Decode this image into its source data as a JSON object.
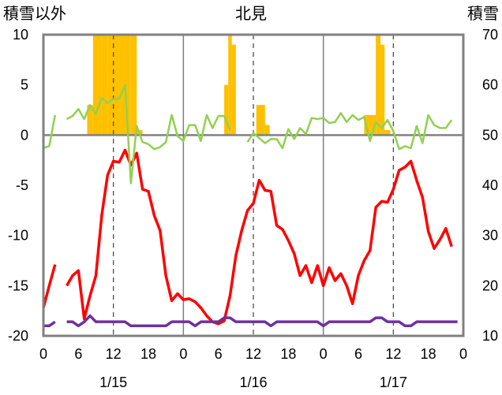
{
  "chart_data": {
    "type": "line",
    "title": "北見",
    "y_left_label": "積雪以外",
    "y_right_label": "積雪",
    "y_left_range": [
      -20,
      10
    ],
    "y_left_ticks": [
      "10",
      "5",
      "0",
      "-5",
      "-10",
      "-15",
      "-20"
    ],
    "y_right_range": [
      10,
      70
    ],
    "y_right_ticks": [
      "70",
      "60",
      "50",
      "40",
      "30",
      "20",
      "10"
    ],
    "x_range_hours": [
      0,
      72
    ],
    "x_tick_labels": [
      "0",
      "6",
      "12",
      "18",
      "0",
      "6",
      "12",
      "18",
      "0",
      "6",
      "12",
      "18",
      "0"
    ],
    "date_labels": [
      "1/15",
      "1/16",
      "1/17"
    ],
    "grid": "vertical lines at each day boundary, dashed lines at noon, horizontal line at 0",
    "colors": {
      "snow_depth": "#FFC000",
      "temperature": "#FF0000",
      "green_series": "#92D050",
      "purple_series": "#7030A0"
    },
    "snow_depth_bars": [
      {
        "x": 7.5,
        "width": 1,
        "value": 56
      },
      {
        "x": 8.5,
        "width": 1.5,
        "value": 70
      },
      {
        "x": 10,
        "width": 1,
        "value": 70
      },
      {
        "x": 11,
        "width": 1,
        "value": 70
      },
      {
        "x": 12,
        "width": 1,
        "value": 70
      },
      {
        "x": 13,
        "width": 1,
        "value": 70
      },
      {
        "x": 14,
        "width": 1,
        "value": 70
      },
      {
        "x": 15,
        "width": 1,
        "value": 70
      },
      {
        "x": 16,
        "width": 1,
        "value": 51
      },
      {
        "x": 31,
        "width": 0.7,
        "value": 60
      },
      {
        "x": 31.7,
        "width": 0.6,
        "value": 70
      },
      {
        "x": 32.3,
        "width": 0.7,
        "value": 68
      },
      {
        "x": 36.5,
        "width": 1.5,
        "value": 56
      },
      {
        "x": 38,
        "width": 0.8,
        "value": 52
      },
      {
        "x": 55,
        "width": 2,
        "value": 54
      },
      {
        "x": 57,
        "width": 0.8,
        "value": 70
      },
      {
        "x": 57.8,
        "width": 0.7,
        "value": 68
      },
      {
        "x": 58.5,
        "width": 1,
        "value": 51
      }
    ],
    "series": [
      {
        "name": "",
        "color": "#FF0000",
        "axis": "left",
        "segments": [
          [
            [
              0,
              -17.2
            ],
            [
              1,
              -15
            ],
            [
              2,
              -12.9
            ]
          ],
          [
            [
              4,
              -15
            ],
            [
              5,
              -14
            ],
            [
              6,
              -13.5
            ],
            [
              7,
              -18.3
            ],
            [
              8,
              -16
            ],
            [
              9,
              -14
            ],
            [
              10,
              -8
            ],
            [
              11,
              -4
            ],
            [
              12,
              -2.6
            ],
            [
              13,
              -2.7
            ],
            [
              14,
              -1.5
            ],
            [
              15,
              -3
            ],
            [
              16,
              -1.8
            ],
            [
              17,
              -5.4
            ],
            [
              18,
              -5.6
            ],
            [
              19,
              -8
            ],
            [
              20,
              -9.5
            ],
            [
              21,
              -14
            ],
            [
              22,
              -16.5
            ],
            [
              23,
              -15.8
            ],
            [
              24,
              -16.4
            ],
            [
              25,
              -16.3
            ],
            [
              26,
              -16.6
            ],
            [
              27,
              -17.2
            ],
            [
              28,
              -18
            ],
            [
              29,
              -18.6
            ],
            [
              30,
              -18.8
            ],
            [
              31,
              -18.5
            ],
            [
              32,
              -16
            ],
            [
              33,
              -12
            ],
            [
              34,
              -9.5
            ],
            [
              35,
              -7.5
            ],
            [
              36,
              -6.8
            ],
            [
              37,
              -4.5
            ],
            [
              38,
              -5.5
            ],
            [
              39,
              -5.6
            ],
            [
              40,
              -9
            ],
            [
              41,
              -9.4
            ],
            [
              42,
              -10.5
            ],
            [
              43,
              -11.8
            ],
            [
              44,
              -14
            ],
            [
              45,
              -13
            ],
            [
              46,
              -14.7
            ],
            [
              47,
              -13
            ],
            [
              48,
              -15
            ],
            [
              49,
              -13.2
            ],
            [
              50,
              -14.5
            ],
            [
              51,
              -13.8
            ],
            [
              52,
              -15
            ],
            [
              53,
              -16.8
            ],
            [
              54,
              -14
            ],
            [
              55,
              -12.5
            ],
            [
              56,
              -11.5
            ],
            [
              57,
              -7.2
            ],
            [
              58,
              -6.6
            ],
            [
              59,
              -6.7
            ],
            [
              60,
              -5.4
            ],
            [
              61,
              -3.5
            ],
            [
              62,
              -3.2
            ],
            [
              63,
              -2.6
            ],
            [
              64,
              -4.5
            ],
            [
              65,
              -6.2
            ],
            [
              66,
              -9.6
            ],
            [
              67,
              -11.3
            ],
            [
              68,
              -10.4
            ],
            [
              69,
              -9.3
            ],
            [
              70,
              -11.1
            ]
          ]
        ]
      },
      {
        "name": "",
        "color": "#92D050",
        "axis": "left",
        "segments": [
          [
            [
              0,
              -1.3
            ],
            [
              1,
              -1.1
            ],
            [
              2,
              2
            ]
          ],
          [
            [
              4,
              1.6
            ],
            [
              5,
              1.9
            ],
            [
              6,
              2.6
            ],
            [
              7,
              1.6
            ],
            [
              8,
              3
            ],
            [
              9,
              2.1
            ],
            [
              10,
              3.7
            ],
            [
              11,
              3.2
            ],
            [
              12,
              3.6
            ],
            [
              13,
              3.6
            ],
            [
              14,
              5
            ],
            [
              15,
              -4.8
            ],
            [
              16,
              0.9
            ],
            [
              17,
              -0.7
            ],
            [
              18,
              -0.9
            ],
            [
              19,
              -1.4
            ],
            [
              20,
              -1.2
            ],
            [
              21,
              -0.7
            ],
            [
              22,
              2
            ],
            [
              23,
              -0.1
            ],
            [
              24,
              -0.6
            ],
            [
              25,
              1
            ],
            [
              26,
              1
            ],
            [
              27,
              -0.6
            ],
            [
              28,
              2
            ],
            [
              29,
              0.7
            ],
            [
              30,
              1.9
            ],
            [
              31,
              1.9
            ],
            [
              32,
              0.5
            ]
          ],
          [
            [
              35,
              -0.7
            ],
            [
              36,
              0.2
            ],
            [
              37,
              -0.3
            ],
            [
              38,
              -0.8
            ],
            [
              39,
              -0.4
            ],
            [
              40,
              -0.4
            ],
            [
              41,
              -1.3
            ],
            [
              42,
              0.6
            ],
            [
              43,
              -0.4
            ],
            [
              44,
              0.7
            ],
            [
              45,
              0.1
            ],
            [
              46,
              1.7
            ],
            [
              47,
              1.6
            ],
            [
              48,
              1.7
            ],
            [
              49,
              1.2
            ],
            [
              50,
              1.3
            ],
            [
              51,
              2.2
            ],
            [
              52,
              1.3
            ],
            [
              53,
              2
            ],
            [
              54,
              1.5
            ],
            [
              55,
              1.8
            ],
            [
              56,
              -0.6
            ],
            [
              57,
              1.3
            ],
            [
              58,
              0.7
            ],
            [
              59,
              1.5
            ],
            [
              60,
              0.4
            ],
            [
              61,
              -1.4
            ],
            [
              62,
              -1.1
            ],
            [
              63,
              -1.3
            ],
            [
              64,
              0.9
            ],
            [
              65,
              -0.8
            ],
            [
              66,
              2
            ],
            [
              67,
              1
            ],
            [
              68,
              0.7
            ],
            [
              69,
              0.7
            ],
            [
              70,
              1.5
            ]
          ]
        ]
      },
      {
        "name": "",
        "color": "#7030A0",
        "axis": "left",
        "segments": [
          [
            [
              0,
              -19
            ],
            [
              1,
              -19
            ],
            [
              2,
              -18.6
            ]
          ],
          [
            [
              4,
              -18.6
            ],
            [
              5,
              -18.6
            ],
            [
              6,
              -19
            ],
            [
              7,
              -18.6
            ],
            [
              8,
              -18
            ],
            [
              9,
              -18.6
            ],
            [
              10,
              -18.6
            ],
            [
              11,
              -18.6
            ],
            [
              12,
              -18.6
            ],
            [
              13,
              -18.6
            ],
            [
              14,
              -18.6
            ],
            [
              15,
              -19
            ],
            [
              16,
              -19
            ],
            [
              17,
              -19
            ],
            [
              18,
              -19
            ],
            [
              19,
              -19
            ],
            [
              20,
              -19
            ],
            [
              21,
              -19
            ],
            [
              22,
              -18.6
            ],
            [
              23,
              -18.6
            ],
            [
              24,
              -18.6
            ],
            [
              25,
              -18.6
            ],
            [
              26,
              -19
            ],
            [
              27,
              -18.6
            ],
            [
              28,
              -18.6
            ],
            [
              29,
              -18.6
            ],
            [
              30,
              -18.6
            ],
            [
              31,
              -18.2
            ],
            [
              32,
              -18.2
            ],
            [
              33,
              -18.6
            ],
            [
              34,
              -18.6
            ],
            [
              35,
              -18.6
            ],
            [
              36,
              -18.6
            ],
            [
              37,
              -18.6
            ],
            [
              38,
              -18.6
            ],
            [
              39,
              -19
            ],
            [
              40,
              -18.6
            ],
            [
              41,
              -18.6
            ],
            [
              42,
              -18.6
            ],
            [
              43,
              -18.6
            ],
            [
              44,
              -18.6
            ],
            [
              45,
              -18.6
            ],
            [
              46,
              -18.6
            ],
            [
              47,
              -18.6
            ],
            [
              48,
              -19
            ],
            [
              49,
              -18.6
            ],
            [
              50,
              -18.6
            ],
            [
              51,
              -18.6
            ],
            [
              52,
              -18.6
            ],
            [
              53,
              -18.6
            ],
            [
              54,
              -18.6
            ],
            [
              55,
              -18.6
            ],
            [
              56,
              -18.6
            ],
            [
              57,
              -18.2
            ],
            [
              58,
              -18.2
            ],
            [
              59,
              -18.6
            ],
            [
              60,
              -18.6
            ],
            [
              61,
              -18.6
            ],
            [
              62,
              -19
            ],
            [
              63,
              -19
            ],
            [
              64,
              -18.6
            ],
            [
              65,
              -18.6
            ],
            [
              66,
              -18.6
            ],
            [
              67,
              -18.6
            ],
            [
              68,
              -18.6
            ],
            [
              69,
              -18.6
            ],
            [
              70,
              -18.6
            ],
            [
              71,
              -18.6
            ]
          ]
        ]
      }
    ]
  }
}
